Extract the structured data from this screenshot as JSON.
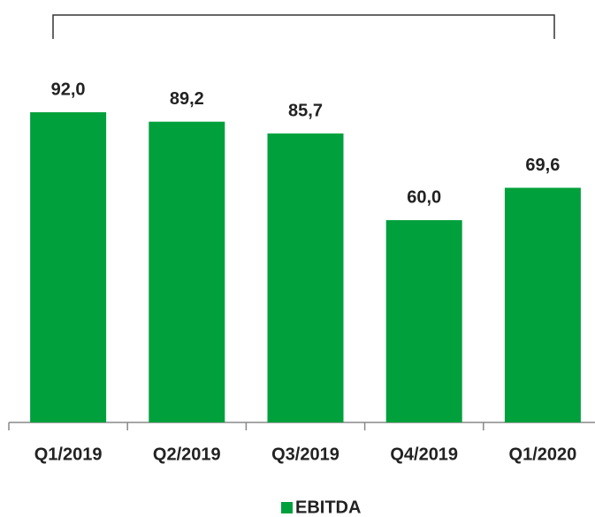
{
  "chart_data": {
    "type": "bar",
    "categories": [
      "Q1/2019",
      "Q2/2019",
      "Q3/2019",
      "Q4/2019",
      "Q1/2020"
    ],
    "values": [
      92.0,
      89.2,
      85.7,
      60.0,
      69.6
    ],
    "value_labels": [
      "92,0",
      "89,2",
      "85,7",
      "60,0",
      "69,6"
    ],
    "color": "#00a03c",
    "series_name": "EBITDA",
    "legend": "bottom"
  }
}
